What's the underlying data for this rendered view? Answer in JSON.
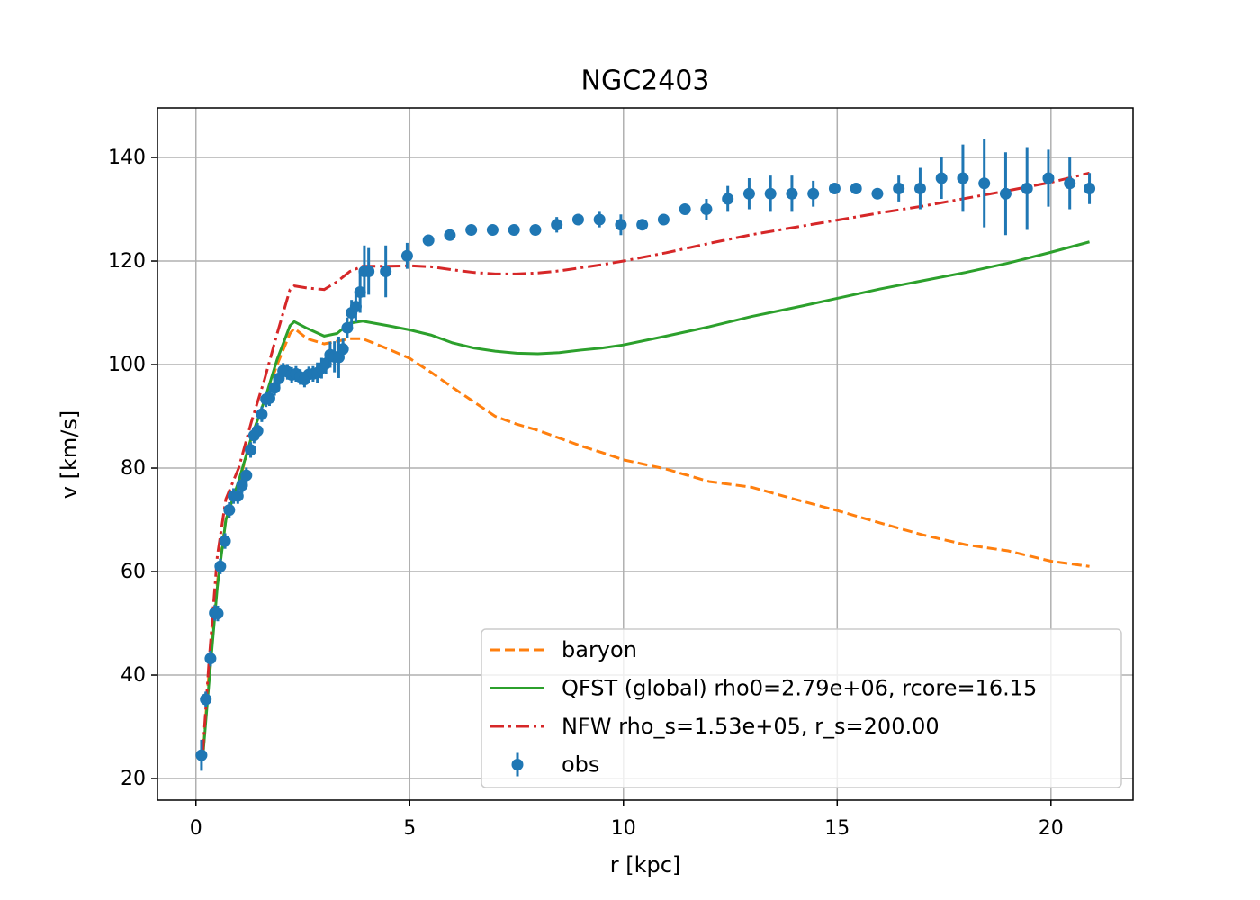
{
  "chart_data": {
    "type": "line",
    "title": "NGC2403",
    "xlabel": "r [kpc]",
    "ylabel": "v [km/s]",
    "xlim": [
      -0.9,
      21.92
    ],
    "ylim": [
      15.83,
      149.57
    ],
    "xticks": [
      0,
      5,
      10,
      15,
      20
    ],
    "yticks": [
      20,
      40,
      60,
      80,
      100,
      120,
      140
    ],
    "grid": true,
    "legend": "lower right",
    "series": [
      {
        "name": "baryon",
        "color": "#ff7f0e",
        "style": "dashed",
        "x": [
          0.16,
          0.3,
          0.5,
          0.7,
          1.0,
          1.3,
          1.6,
          1.9,
          2.2,
          2.3,
          2.6,
          3.0,
          3.3,
          3.6,
          3.9,
          4.5,
          5.0,
          5.5,
          6.0,
          6.5,
          7.0,
          7.5,
          8.0,
          8.5,
          9.0,
          9.5,
          10.0,
          11,
          12,
          13,
          14,
          15,
          16,
          17,
          18,
          19,
          20,
          20.9
        ],
        "values": [
          24,
          40,
          58,
          70,
          77,
          86,
          93,
          100,
          106,
          107,
          105,
          104,
          104.5,
          105,
          105,
          103,
          101.2,
          98.5,
          95.6,
          92.8,
          90,
          88.5,
          87.3,
          85.8,
          84.3,
          83,
          81.6,
          79.8,
          77.4,
          76.3,
          74,
          71.8,
          69.4,
          67.1,
          65.2,
          64,
          62,
          61
        ]
      },
      {
        "name": "QFST (global) rho0=2.79e+06, rcore=16.15",
        "color": "#2ca02c",
        "style": "solid",
        "x": [
          0.16,
          0.3,
          0.5,
          0.7,
          1.0,
          1.3,
          1.6,
          1.9,
          2.2,
          2.3,
          2.6,
          3.0,
          3.3,
          3.6,
          3.9,
          4.5,
          5.0,
          5.5,
          6.0,
          6.5,
          7.0,
          7.5,
          8.0,
          8.5,
          9.0,
          9.5,
          10.0,
          11,
          12,
          13,
          14,
          15,
          16,
          17,
          18,
          19,
          20,
          20.9
        ],
        "values": [
          24,
          38,
          57,
          70,
          77.5,
          86,
          93,
          101,
          107.5,
          108.3,
          107,
          105.5,
          106,
          108,
          108.4,
          107.5,
          106.7,
          105.7,
          104.2,
          103.2,
          102.6,
          102.2,
          102.1,
          102.3,
          102.8,
          103.2,
          103.8,
          105.5,
          107.3,
          109.3,
          111,
          112.8,
          114.6,
          116.2,
          117.8,
          119.6,
          121.7,
          123.7
        ]
      },
      {
        "name": "NFW rho_s=1.53e+05, r_s=200.00",
        "color": "#d62728",
        "style": "dashdot",
        "x": [
          0.16,
          0.3,
          0.5,
          0.7,
          1.0,
          1.3,
          1.6,
          1.9,
          2.2,
          2.3,
          2.6,
          3.0,
          3.3,
          3.6,
          3.9,
          4.5,
          5.0,
          5.5,
          6.0,
          6.5,
          7.0,
          7.5,
          8.0,
          8.5,
          9.0,
          9.5,
          10.0,
          11,
          12,
          13,
          14,
          15,
          16,
          17,
          18,
          19,
          20,
          20.9
        ],
        "values": [
          25,
          42,
          63,
          74,
          80,
          89,
          97,
          106,
          114.5,
          115.2,
          114.8,
          114.5,
          116,
          118,
          119,
          119,
          119.1,
          118.9,
          118.3,
          117.8,
          117.5,
          117.5,
          117.7,
          118.1,
          118.7,
          119.3,
          120,
          121.6,
          123.4,
          125.1,
          126.5,
          127.9,
          129.3,
          130.6,
          132.1,
          133.6,
          135.2,
          137
        ]
      },
      {
        "name": "obs",
        "color": "#1f77b4",
        "style": "errorbar",
        "x": [
          0.13,
          0.23,
          0.34,
          0.44,
          0.51,
          0.57,
          0.68,
          0.78,
          0.88,
          0.98,
          1.08,
          1.18,
          1.28,
          1.36,
          1.44,
          1.54,
          1.64,
          1.72,
          1.84,
          1.94,
          2.04,
          2.14,
          2.24,
          2.34,
          2.44,
          2.54,
          2.64,
          2.74,
          2.84,
          2.94,
          3.04,
          3.14,
          3.24,
          3.34,
          3.44,
          3.54,
          3.64,
          3.74,
          3.84,
          3.94,
          4.04,
          4.44,
          4.94,
          5.44,
          5.94,
          6.44,
          6.94,
          7.44,
          7.94,
          8.44,
          8.94,
          9.44,
          9.94,
          10.44,
          10.94,
          11.44,
          11.94,
          12.44,
          12.94,
          13.44,
          13.94,
          14.44,
          14.94,
          15.44,
          15.94,
          16.44,
          16.94,
          17.44,
          17.94,
          18.44,
          18.94,
          19.44,
          19.94,
          20.44,
          20.9
        ],
        "values": [
          24.5,
          35.3,
          43.2,
          52,
          51.9,
          61,
          65.9,
          71.9,
          74.6,
          74.6,
          76.7,
          78.6,
          83.5,
          86.3,
          87.2,
          90.4,
          93.3,
          93.5,
          95.5,
          97.3,
          98.8,
          98.6,
          98.0,
          98.2,
          97.6,
          97.1,
          98.1,
          98.2,
          98.4,
          99.3,
          100.2,
          101.9,
          101.5,
          101.4,
          103,
          107.1,
          110,
          111.2,
          114,
          118,
          118,
          118,
          121,
          124,
          125,
          126,
          126,
          126,
          126,
          127,
          128,
          128,
          127,
          127,
          128,
          130,
          130,
          132,
          133,
          133,
          133,
          133,
          134,
          134,
          133,
          134,
          134,
          136,
          136,
          135,
          133,
          134,
          136,
          135,
          134
        ],
        "errors": [
          3,
          1.5,
          1.5,
          1.5,
          1.5,
          1.5,
          1.5,
          1.5,
          1.5,
          1.5,
          1.5,
          1.5,
          1.5,
          1.5,
          1.5,
          1.5,
          1.5,
          1.5,
          1.5,
          1.5,
          1.5,
          1.5,
          1.5,
          1.5,
          1.5,
          1.5,
          1.5,
          1.5,
          2,
          2,
          2,
          2.5,
          3,
          4,
          2,
          2,
          2.5,
          3,
          4,
          5,
          4.5,
          5,
          2.5,
          1,
          1,
          1,
          1,
          1,
          1,
          1.5,
          1,
          1.5,
          2,
          1,
          1,
          1,
          2,
          2.5,
          3,
          3.5,
          3.5,
          2.5,
          1,
          1,
          1,
          2.5,
          4,
          4,
          6.5,
          8.5,
          8,
          8,
          5.5,
          5,
          3
        ]
      }
    ]
  }
}
